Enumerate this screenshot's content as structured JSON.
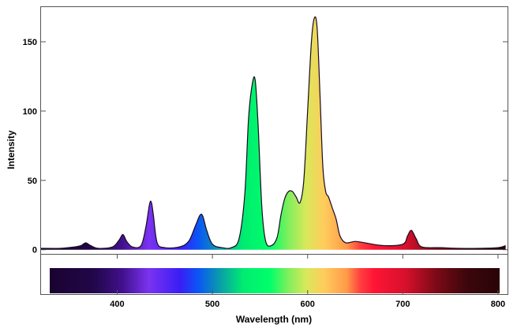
{
  "chart_data": {
    "type": "area",
    "xlabel": "Wavelength (nm)",
    "ylabel": "Intensity",
    "xlim": [
      320,
      810
    ],
    "ylim": [
      -3,
      175
    ],
    "x_ticks": [
      400,
      500,
      600,
      700,
      800
    ],
    "y_ticks": [
      0,
      50,
      100,
      150
    ],
    "grid": false,
    "fill": "wavelength-colored spectrum gradient under the curve",
    "colorbar": "visible-spectrum gradient strip below the plot",
    "series": [
      {
        "x": [
          320,
          340,
          355,
          362,
          367,
          372,
          380,
          395,
          402,
          406,
          410,
          416,
          425,
          430,
          434,
          436,
          438,
          442,
          450,
          465,
          475,
          482,
          487,
          490,
          494,
          500,
          510,
          520,
          528,
          534,
          538,
          542,
          545,
          548,
          552,
          556,
          562,
          568,
          572,
          576,
          580,
          584,
          588,
          592,
          596,
          600,
          604,
          607,
          610,
          613,
          616,
          619,
          622,
          626,
          630,
          634,
          640,
          650,
          660,
          680,
          700,
          705,
          709,
          714,
          720,
          740,
          760,
          780,
          800,
          808
        ],
        "y": [
          1,
          1,
          2,
          3,
          5,
          3,
          1,
          2,
          7,
          11,
          6,
          2,
          3,
          16,
          33,
          34,
          25,
          5,
          1.5,
          2,
          6,
          17,
          25,
          24,
          14,
          4,
          1.5,
          1.5,
          8,
          40,
          95,
          120,
          122,
          90,
          30,
          6,
          3,
          9,
          25,
          37,
          42,
          42,
          38,
          34,
          50,
          100,
          150,
          167,
          160,
          112,
          60,
          42,
          38,
          30,
          22,
          10,
          5,
          6,
          5,
          3,
          4,
          10,
          14,
          8,
          2,
          1.5,
          1,
          1,
          1.5,
          3
        ]
      }
    ]
  }
}
